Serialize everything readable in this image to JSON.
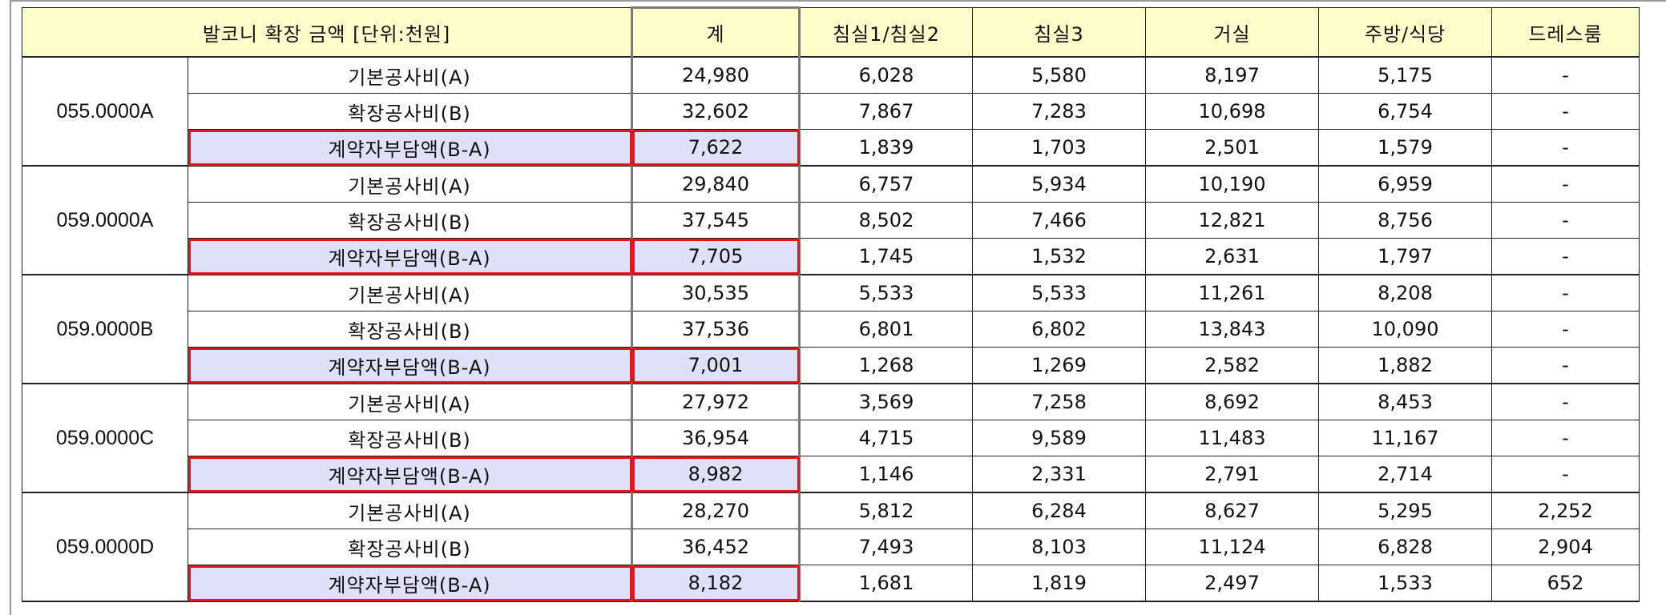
{
  "header": {
    "title": "발코니 확장 금액 [단위:천원]",
    "total": "계",
    "columns": [
      "침실1/침실2",
      "침실3",
      "거실",
      "주방/식당",
      "드레스룸"
    ]
  },
  "groups": [
    {
      "type": "055.0000A",
      "rows": [
        {
          "item": "기본공사비(A)",
          "total": "24,980",
          "values": [
            "6,028",
            "5,580",
            "8,197",
            "5,175",
            "-"
          ]
        },
        {
          "item": "확장공사비(B)",
          "total": "32,602",
          "values": [
            "7,867",
            "7,283",
            "10,698",
            "6,754",
            "-"
          ]
        },
        {
          "item": "계약자부담액(B-A)",
          "total": "7,622",
          "values": [
            "1,839",
            "1,703",
            "2,501",
            "1,579",
            "-"
          ]
        }
      ]
    },
    {
      "type": "059.0000A",
      "rows": [
        {
          "item": "기본공사비(A)",
          "total": "29,840",
          "values": [
            "6,757",
            "5,934",
            "10,190",
            "6,959",
            "-"
          ]
        },
        {
          "item": "확장공사비(B)",
          "total": "37,545",
          "values": [
            "8,502",
            "7,466",
            "12,821",
            "8,756",
            "-"
          ]
        },
        {
          "item": "계약자부담액(B-A)",
          "total": "7,705",
          "values": [
            "1,745",
            "1,532",
            "2,631",
            "1,797",
            "-"
          ]
        }
      ]
    },
    {
      "type": "059.0000B",
      "rows": [
        {
          "item": "기본공사비(A)",
          "total": "30,535",
          "values": [
            "5,533",
            "5,533",
            "11,261",
            "8,208",
            "-"
          ]
        },
        {
          "item": "확장공사비(B)",
          "total": "37,536",
          "values": [
            "6,801",
            "6,802",
            "13,843",
            "10,090",
            "-"
          ]
        },
        {
          "item": "계약자부담액(B-A)",
          "total": "7,001",
          "values": [
            "1,268",
            "1,269",
            "2,582",
            "1,882",
            "-"
          ]
        }
      ]
    },
    {
      "type": "059.0000C",
      "rows": [
        {
          "item": "기본공사비(A)",
          "total": "27,972",
          "values": [
            "3,569",
            "7,258",
            "8,692",
            "8,453",
            "-"
          ]
        },
        {
          "item": "확장공사비(B)",
          "total": "36,954",
          "values": [
            "4,715",
            "9,589",
            "11,483",
            "11,167",
            "-"
          ]
        },
        {
          "item": "계약자부담액(B-A)",
          "total": "8,982",
          "values": [
            "1,146",
            "2,331",
            "2,791",
            "2,714",
            "-"
          ]
        }
      ]
    },
    {
      "type": "059.0000D",
      "rows": [
        {
          "item": "기본공사비(A)",
          "total": "28,270",
          "values": [
            "5,812",
            "6,284",
            "8,627",
            "5,295",
            "2,252"
          ]
        },
        {
          "item": "확장공사비(B)",
          "total": "36,452",
          "values": [
            "7,493",
            "8,103",
            "11,124",
            "6,828",
            "2,904"
          ]
        },
        {
          "item": "계약자부담액(B-A)",
          "total": "8,182",
          "values": [
            "1,681",
            "1,819",
            "2,497",
            "1,533",
            "652"
          ]
        }
      ]
    }
  ],
  "colors": {
    "header_bg": "#ffffcc",
    "highlight_bg": "#dfe1fa",
    "highlight_border": "#e8141c"
  }
}
